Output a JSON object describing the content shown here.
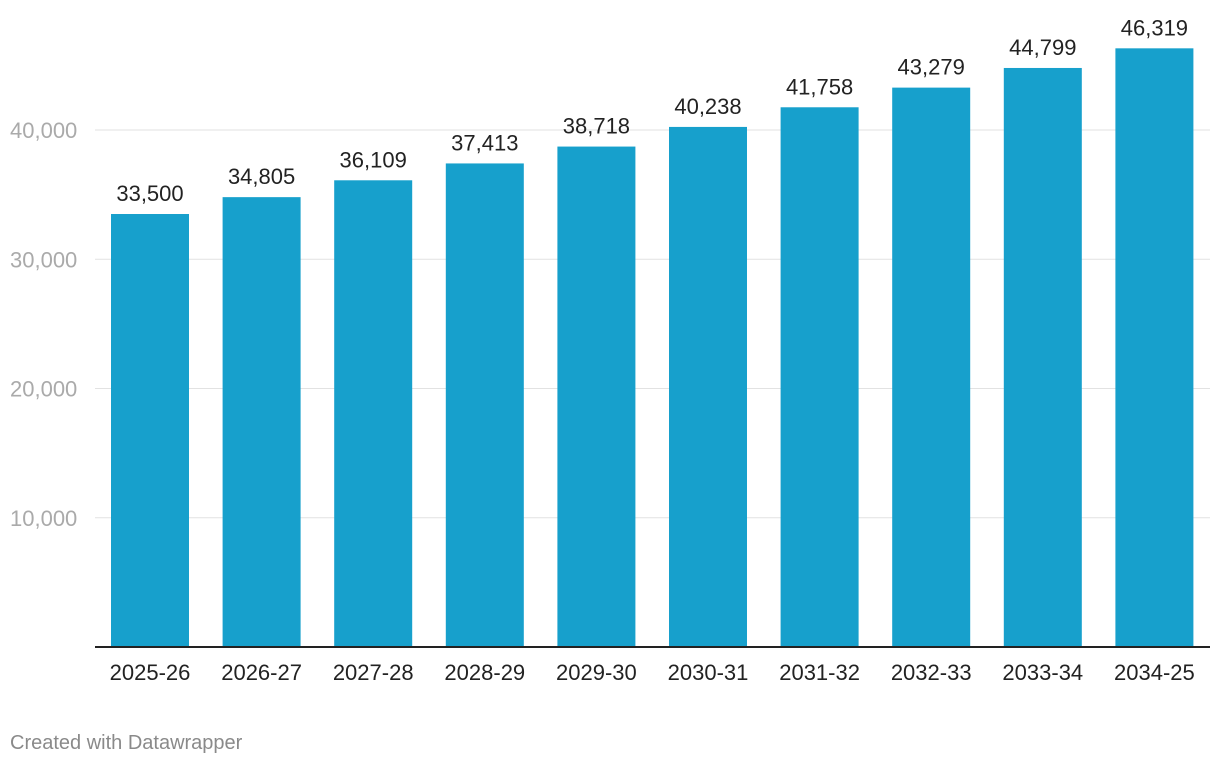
{
  "chart_data": {
    "type": "bar",
    "title": "",
    "xlabel": "",
    "ylabel": "",
    "categories": [
      "2025-26",
      "2026-27",
      "2027-28",
      "2028-29",
      "2029-30",
      "2030-31",
      "2031-32",
      "2032-33",
      "2033-34",
      "2034-25"
    ],
    "values": [
      33500,
      34805,
      36109,
      37413,
      38718,
      40238,
      41758,
      43279,
      44799,
      46319
    ],
    "value_labels": [
      "33,500",
      "34,805",
      "36,109",
      "37,413",
      "38,718",
      "40,238",
      "41,758",
      "43,279",
      "44,799",
      "46,319"
    ],
    "y_ticks": [
      10000,
      20000,
      30000,
      40000
    ],
    "y_tick_labels": [
      "10,000",
      "20,000",
      "30,000",
      "40,000"
    ],
    "ylim": [
      0,
      40000
    ],
    "grid": true,
    "legend": "none",
    "bar_color": "#17a0cc"
  },
  "footer": {
    "credit": "Created with Datawrapper"
  }
}
